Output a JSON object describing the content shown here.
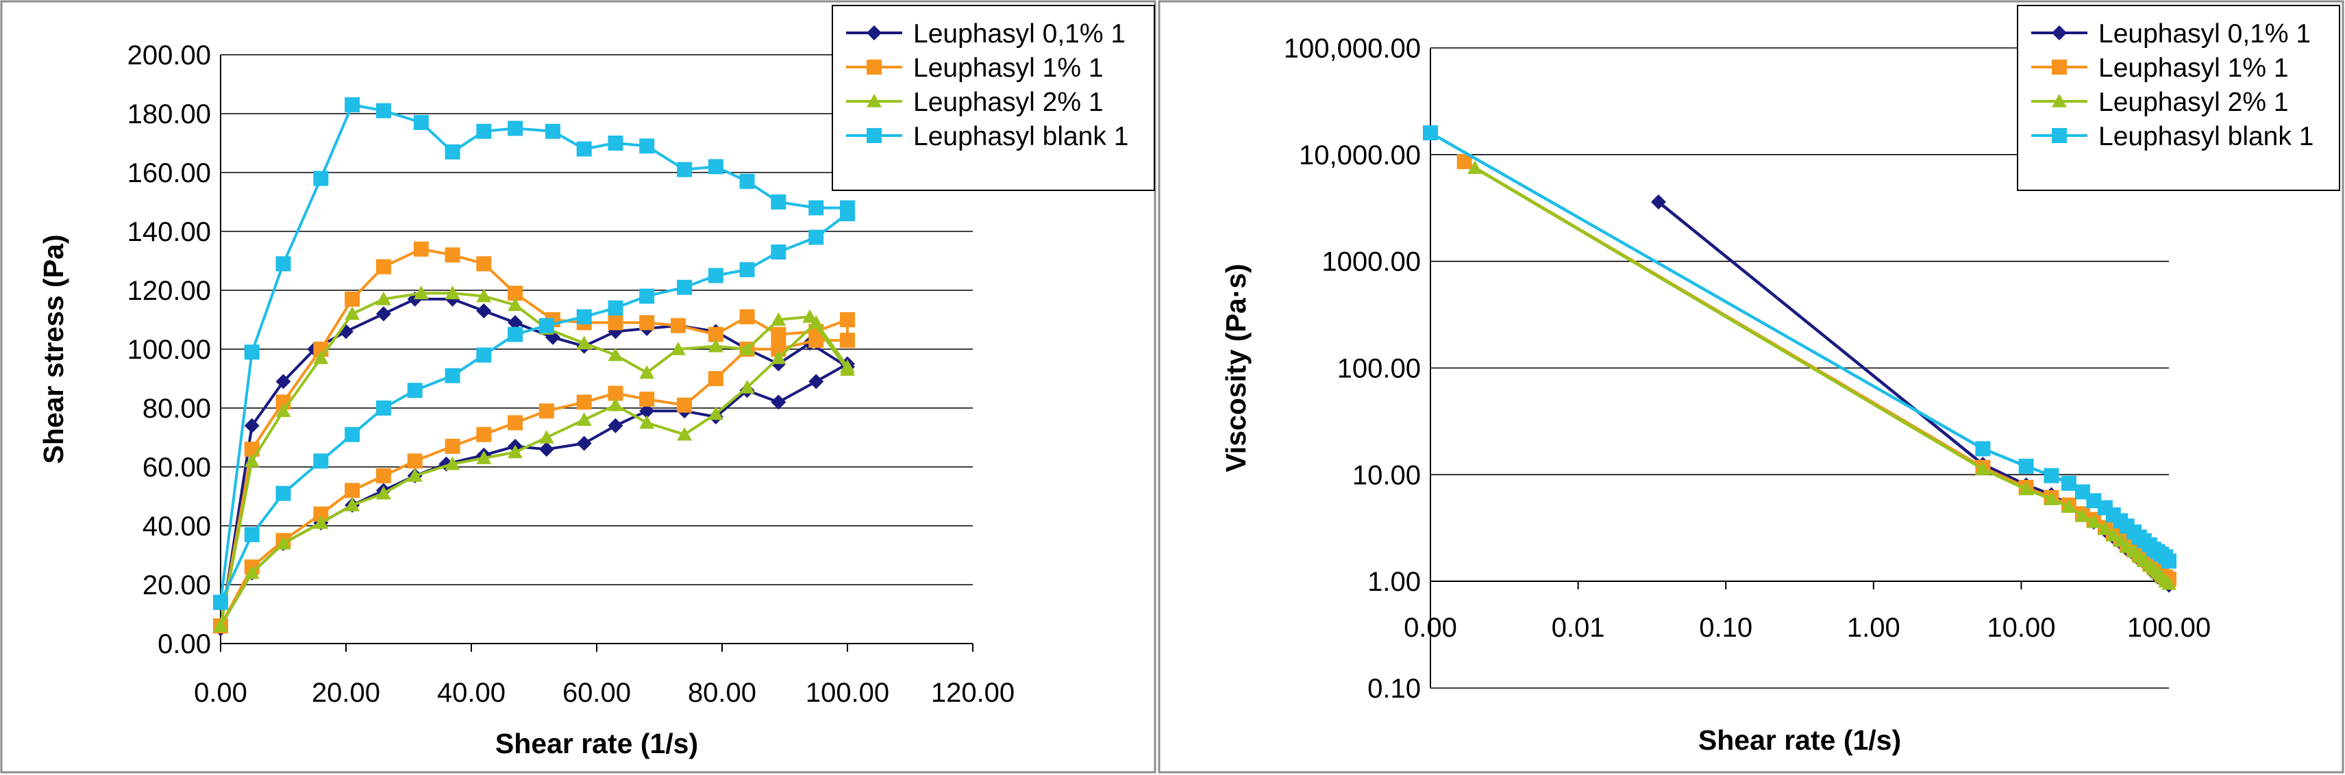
{
  "chart_data": [
    {
      "type": "scatter",
      "mode": "lines+markers",
      "xlabel": "Shear rate (1/s)",
      "ylabel": "Shear stress (Pa)",
      "xlim": [
        0,
        120
      ],
      "ylim": [
        0,
        200
      ],
      "x_ticks": [
        "0.00",
        "20.00",
        "40.00",
        "60.00",
        "80.00",
        "100.00",
        "120.00"
      ],
      "y_ticks": [
        "0.00",
        "20.00",
        "40.00",
        "60.00",
        "80.00",
        "100.00",
        "120.00",
        "140.00",
        "160.00",
        "180.00",
        "200.00"
      ],
      "grid": "horizontal",
      "legend_position": "top-right",
      "series": [
        {
          "name": "Leuphasyl 0,1% 1",
          "color": "#1a1a80",
          "marker": "diamond",
          "x": [
            0,
            5,
            10,
            15,
            20,
            26,
            31,
            37,
            42,
            47,
            53,
            58,
            63,
            68,
            73,
            79,
            84,
            89,
            94,
            100,
            100,
            95,
            89,
            84,
            79,
            74,
            68,
            63,
            58,
            52,
            47,
            42,
            36,
            31,
            26,
            21,
            16,
            10,
            5,
            0
          ],
          "y": [
            5,
            74,
            89,
            100,
            106,
            112,
            117,
            117,
            113,
            109,
            104,
            101,
            106,
            107,
            108,
            106,
            100,
            95,
            102,
            94,
            95,
            89,
            82,
            86,
            77,
            79,
            79,
            74,
            68,
            66,
            67,
            64,
            61,
            57,
            52,
            47,
            41,
            34,
            24,
            6
          ]
        },
        {
          "name": "Leuphasyl 1% 1",
          "color": "#f7941d",
          "marker": "square",
          "x": [
            0,
            5,
            10,
            16,
            21,
            26,
            32,
            37,
            42,
            47,
            53,
            58,
            63,
            68,
            73,
            79,
            84,
            89,
            95,
            100,
            100,
            95,
            89,
            84,
            79,
            74,
            68,
            63,
            58,
            52,
            47,
            42,
            37,
            31,
            26,
            21,
            16,
            10,
            5,
            0
          ],
          "y": [
            6,
            66,
            82,
            100,
            117,
            128,
            134,
            132,
            129,
            119,
            110,
            109,
            109,
            109,
            108,
            105,
            111,
            105,
            106,
            110,
            103,
            103,
            100,
            100,
            90,
            81,
            83,
            85,
            82,
            79,
            75,
            71,
            67,
            62,
            57,
            52,
            44,
            35,
            26,
            6
          ]
        },
        {
          "name": "Leuphasyl 2% 1",
          "color": "#99c21e",
          "marker": "triangle",
          "x": [
            0,
            5,
            10,
            16,
            21,
            26,
            32,
            37,
            42,
            47,
            52,
            58,
            63,
            68,
            73,
            79,
            84,
            89,
            94,
            100,
            100,
            95,
            89,
            84,
            79,
            74,
            68,
            63,
            58,
            52,
            47,
            42,
            37,
            31,
            26,
            21,
            16,
            10,
            5,
            0
          ],
          "y": [
            6,
            62,
            79,
            97,
            112,
            117,
            119,
            119,
            118,
            115,
            107,
            102,
            98,
            92,
            100,
            101,
            100,
            110,
            111,
            93,
            94,
            109,
            97,
            87,
            78,
            71,
            75,
            81,
            76,
            70,
            65,
            63,
            61,
            57,
            51,
            47,
            41,
            34,
            24,
            6
          ]
        },
        {
          "name": "Leuphasyl blank 1",
          "color": "#1fbde8",
          "marker": "square",
          "x": [
            0,
            5,
            10,
            16,
            21,
            26,
            32,
            37,
            42,
            47,
            53,
            58,
            63,
            68,
            74,
            79,
            84,
            89,
            95,
            100,
            100,
            95,
            89,
            84,
            79,
            74,
            68,
            63,
            58,
            52,
            47,
            42,
            37,
            31,
            26,
            21,
            16,
            10,
            5,
            0
          ],
          "y": [
            14,
            99,
            129,
            158,
            183,
            181,
            177,
            167,
            174,
            175,
            174,
            168,
            170,
            169,
            161,
            162,
            157,
            150,
            148,
            148,
            146,
            138,
            133,
            127,
            125,
            121,
            118,
            114,
            111,
            108,
            105,
            98,
            91,
            86,
            80,
            71,
            62,
            51,
            37,
            14
          ]
        }
      ]
    },
    {
      "type": "line",
      "mode": "lines+markers",
      "xlabel": "Shear rate (1/s)",
      "ylabel": "Viscosity (Pa·s)",
      "xscale": "log",
      "yscale": "log",
      "xlim": [
        0.001,
        100
      ],
      "ylim": [
        0.1,
        100000
      ],
      "x_ticks": [
        "0.00",
        "0.01",
        "0.10",
        "1.00",
        "10.00",
        "100.00"
      ],
      "y_ticks": [
        "0.10",
        "1.00",
        "10.00",
        "100.00",
        "1000.00",
        "10,000.00",
        "100,000.00"
      ],
      "grid": "horizontal",
      "legend_position": "top-right",
      "series": [
        {
          "name": "Leuphasyl 0,1% 1",
          "color": "#1a1a80",
          "marker": "diamond",
          "x": [
            0.035,
            5.5,
            10.8,
            16,
            21,
            26,
            31,
            37,
            42,
            47,
            52,
            58,
            63,
            68,
            74,
            79,
            84,
            89,
            95,
            100
          ],
          "y": [
            3600,
            12.5,
            8.0,
            6.5,
            5.2,
            4.2,
            3.6,
            3.0,
            2.6,
            2.3,
            2.0,
            1.8,
            1.6,
            1.5,
            1.4,
            1.2,
            1.1,
            1.05,
            1.0,
            0.92
          ]
        },
        {
          "name": "Leuphasyl 1% 1",
          "color": "#f7941d",
          "marker": "square",
          "x": [
            0.0017,
            5.5,
            10.8,
            16,
            21,
            26,
            31,
            37,
            42,
            47,
            52,
            58,
            63,
            68,
            74,
            79,
            84,
            89,
            95,
            100
          ],
          "y": [
            8600,
            11.7,
            7.6,
            6.1,
            5.2,
            4.3,
            3.8,
            3.2,
            2.8,
            2.5,
            2.2,
            2.0,
            1.8,
            1.65,
            1.5,
            1.4,
            1.3,
            1.2,
            1.1,
            1.05
          ]
        },
        {
          "name": "Leuphasyl 2% 1",
          "color": "#99c21e",
          "marker": "triangle",
          "x": [
            0.002,
            5.5,
            10.8,
            16,
            21,
            26,
            31,
            37,
            42,
            47,
            52,
            58,
            63,
            68,
            74,
            79,
            84,
            89,
            95,
            100
          ],
          "y": [
            7500,
            11.3,
            7.3,
            5.9,
            5.0,
            4.1,
            3.6,
            3.1,
            2.7,
            2.4,
            2.1,
            1.9,
            1.7,
            1.55,
            1.4,
            1.3,
            1.2,
            1.1,
            1.0,
            0.95
          ]
        },
        {
          "name": "Leuphasyl blank 1",
          "color": "#1fbde8",
          "marker": "square",
          "x": [
            0.001,
            5.5,
            10.8,
            16,
            21,
            26,
            31,
            37,
            42,
            47,
            52,
            58,
            63,
            68,
            74,
            79,
            84,
            89,
            95,
            100
          ],
          "y": [
            16000,
            17.5,
            12.0,
            9.8,
            8.3,
            6.9,
            5.7,
            4.9,
            4.2,
            3.7,
            3.3,
            2.9,
            2.6,
            2.4,
            2.2,
            2.0,
            1.9,
            1.8,
            1.7,
            1.55
          ]
        }
      ]
    }
  ]
}
